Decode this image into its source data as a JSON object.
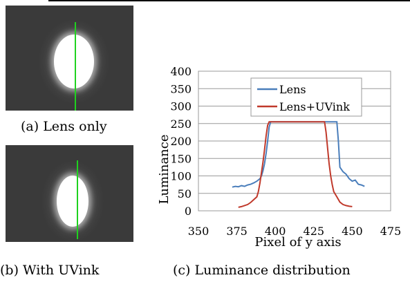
{
  "captions": {
    "a": "(a) Lens only",
    "b": "(b) With UVink",
    "c": "(c) Luminance distribution"
  },
  "photos": {
    "top": {
      "line_color": "#1fd21f"
    },
    "bottom": {
      "line_color": "#1fd21f"
    }
  },
  "chart_data": {
    "type": "line",
    "xlabel": "Pixel of y axis",
    "ylabel": "Luminance",
    "xlim": [
      350,
      475
    ],
    "ylim": [
      0,
      400
    ],
    "x_ticks": [
      350,
      375,
      400,
      425,
      450,
      475
    ],
    "y_ticks": [
      0,
      50,
      100,
      150,
      200,
      250,
      300,
      350,
      400
    ],
    "grid": "horizontal",
    "legend_position": "top-right",
    "series": [
      {
        "name": "Lens",
        "color": "#4a7ebb",
        "points": [
          [
            372,
            68
          ],
          [
            374,
            70
          ],
          [
            376,
            69
          ],
          [
            378,
            72
          ],
          [
            380,
            70
          ],
          [
            382,
            74
          ],
          [
            384,
            76
          ],
          [
            386,
            80
          ],
          [
            388,
            85
          ],
          [
            390,
            92
          ],
          [
            391,
            100
          ],
          [
            392,
            115
          ],
          [
            393,
            135
          ],
          [
            394,
            165
          ],
          [
            395,
            200
          ],
          [
            396,
            240
          ],
          [
            397,
            255
          ],
          [
            400,
            255
          ],
          [
            405,
            255
          ],
          [
            410,
            255
          ],
          [
            415,
            255
          ],
          [
            420,
            255
          ],
          [
            425,
            255
          ],
          [
            430,
            255
          ],
          [
            435,
            255
          ],
          [
            438,
            255
          ],
          [
            440,
            255
          ],
          [
            441,
            200
          ],
          [
            442,
            125
          ],
          [
            444,
            112
          ],
          [
            446,
            105
          ],
          [
            448,
            92
          ],
          [
            450,
            85
          ],
          [
            452,
            88
          ],
          [
            454,
            76
          ],
          [
            456,
            74
          ],
          [
            458,
            70
          ]
        ]
      },
      {
        "name": "Lens+UVink",
        "color": "#c0392b",
        "points": [
          [
            376,
            10
          ],
          [
            378,
            12
          ],
          [
            380,
            15
          ],
          [
            382,
            18
          ],
          [
            384,
            24
          ],
          [
            386,
            32
          ],
          [
            388,
            40
          ],
          [
            389,
            55
          ],
          [
            390,
            80
          ],
          [
            391,
            110
          ],
          [
            392,
            140
          ],
          [
            393,
            175
          ],
          [
            394,
            215
          ],
          [
            395,
            245
          ],
          [
            396,
            255
          ],
          [
            400,
            255
          ],
          [
            405,
            255
          ],
          [
            410,
            255
          ],
          [
            415,
            255
          ],
          [
            420,
            255
          ],
          [
            425,
            255
          ],
          [
            430,
            255
          ],
          [
            432,
            255
          ],
          [
            433,
            225
          ],
          [
            434,
            180
          ],
          [
            435,
            135
          ],
          [
            436,
            100
          ],
          [
            437,
            75
          ],
          [
            438,
            55
          ],
          [
            440,
            40
          ],
          [
            442,
            25
          ],
          [
            444,
            18
          ],
          [
            446,
            15
          ],
          [
            448,
            13
          ],
          [
            450,
            12
          ]
        ]
      }
    ]
  }
}
